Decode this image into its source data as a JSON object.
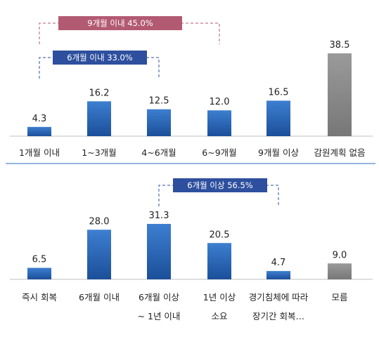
{
  "colors": {
    "bar_blue_top": "#3d7fd0",
    "bar_blue_bottom": "#1b4f9a",
    "bar_gray": "#8a8a8a",
    "bracket_pink": "#b35a73",
    "bracket_blue": "#2e4f9e",
    "divider": "#2a6fc1"
  },
  "chart_data": [
    {
      "type": "bar",
      "categories": [
        [
          "1개월 이내"
        ],
        [
          "1~3개월"
        ],
        [
          "4~6개월"
        ],
        [
          "6~9개월"
        ],
        [
          "9개월 이상"
        ],
        [
          "감원계획 없음"
        ]
      ],
      "values": [
        4.3,
        16.2,
        12.5,
        12.0,
        16.5,
        38.5
      ],
      "value_labels": [
        "4.3",
        "16.2",
        "12.5",
        "12.0",
        "16.5",
        "38.5"
      ],
      "highlight_last_gray": true,
      "ylim": [
        0,
        40
      ],
      "annotations": [
        {
          "text": "9개월 이내 45.0%",
          "from": 0,
          "to": 3,
          "color": "pink"
        },
        {
          "text": "6개월 이내 33.0%",
          "from": 0,
          "to": 2,
          "color": "blue"
        }
      ]
    },
    {
      "type": "bar",
      "categories": [
        [
          "즉시 회복"
        ],
        [
          "6개월 이내"
        ],
        [
          "6개월 이상",
          "~ 1년 이내"
        ],
        [
          "1년 이상",
          "소요"
        ],
        [
          "경기침체에 따라",
          "장기간 회복…"
        ],
        [
          "모름"
        ]
      ],
      "values": [
        6.5,
        28.0,
        31.3,
        20.5,
        4.7,
        9.0
      ],
      "value_labels": [
        "6.5",
        "28.0",
        "31.3",
        "20.5",
        "4.7",
        "9.0"
      ],
      "highlight_last_gray": true,
      "ylim": [
        0,
        40
      ],
      "annotations": [
        {
          "text": "6개월 이상 56.5%",
          "from": 2,
          "to": 4,
          "color": "blue"
        }
      ]
    }
  ]
}
